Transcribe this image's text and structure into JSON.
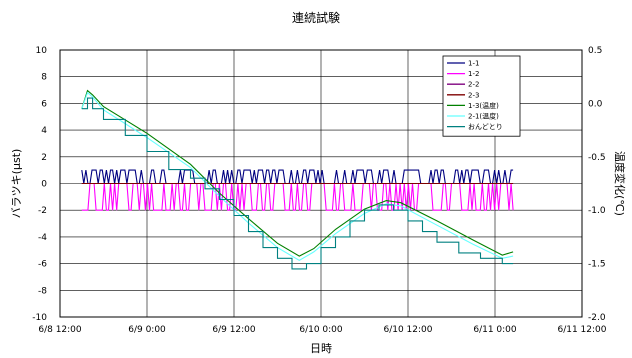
{
  "chart_data": {
    "type": "line",
    "title": "連続試験",
    "xlabel": "日時",
    "ylabel": "バラツキ(μst)",
    "y2label": "温度変化(℃)",
    "x_ticks": [
      "6/8 12:00",
      "6/9 0:00",
      "6/9 12:00",
      "6/10 0:00",
      "6/10 12:00",
      "6/11 0:00",
      "6/11 12:00"
    ],
    "x_range_hours": [
      0,
      72
    ],
    "ylim": [
      -10,
      10
    ],
    "y_ticks": [
      -10,
      -8,
      -6,
      -4,
      -2,
      0,
      2,
      4,
      6,
      8,
      10
    ],
    "y2lim": [
      -2.0,
      0.5
    ],
    "y2_ticks": [
      "0.5",
      "0.0",
      "-0.5",
      "-1.0",
      "-1.5",
      "-2.0"
    ],
    "y2_tick_values": [
      0.5,
      0.0,
      -0.5,
      -1.0,
      -1.5,
      -2.0
    ],
    "grid": true,
    "legend_position": "top-right",
    "series": [
      {
        "name": "1-1",
        "color": "#000080",
        "axis": "left",
        "kind": "noise",
        "levels": [
          0,
          1
        ],
        "seed": 11
      },
      {
        "name": "1-2",
        "color": "#ff00ff",
        "axis": "left",
        "kind": "noise",
        "levels": [
          0,
          -2
        ],
        "seed": 29
      },
      {
        "name": "2-2",
        "color": "#7f007f",
        "axis": "left",
        "kind": "flat",
        "value": 0
      },
      {
        "name": "2-3",
        "color": "#7f0000",
        "axis": "left",
        "kind": "flat",
        "value": 0
      },
      {
        "name": "1-3(温度)",
        "color": "#008000",
        "axis": "right",
        "kind": "curve",
        "points": [
          [
            3.0,
            -0.05
          ],
          [
            3.8,
            0.12
          ],
          [
            4.5,
            0.08
          ],
          [
            6,
            -0.03
          ],
          [
            12,
            -0.28
          ],
          [
            18,
            -0.57
          ],
          [
            22,
            -0.84
          ],
          [
            26,
            -1.08
          ],
          [
            30,
            -1.31
          ],
          [
            33,
            -1.43
          ],
          [
            35,
            -1.36
          ],
          [
            38,
            -1.18
          ],
          [
            42,
            -0.99
          ],
          [
            45,
            -0.91
          ],
          [
            47,
            -0.93
          ],
          [
            52,
            -1.1
          ],
          [
            57,
            -1.28
          ],
          [
            61,
            -1.42
          ],
          [
            62.5,
            -1.39
          ]
        ]
      },
      {
        "name": "2-1(温度)",
        "color": "#66ffff",
        "axis": "right",
        "kind": "curve",
        "points": [
          [
            3.0,
            -0.05
          ],
          [
            3.8,
            0.1
          ],
          [
            4.5,
            0.06
          ],
          [
            6,
            -0.06
          ],
          [
            12,
            -0.32
          ],
          [
            18,
            -0.6
          ],
          [
            22,
            -0.87
          ],
          [
            26,
            -1.12
          ],
          [
            30,
            -1.35
          ],
          [
            33,
            -1.47
          ],
          [
            35,
            -1.39
          ],
          [
            38,
            -1.22
          ],
          [
            42,
            -1.03
          ],
          [
            45,
            -0.94
          ],
          [
            47,
            -0.96
          ],
          [
            52,
            -1.14
          ],
          [
            57,
            -1.32
          ],
          [
            61,
            -1.45
          ],
          [
            62.5,
            -1.43
          ]
        ]
      },
      {
        "name": "おんどとり",
        "color": "#008080",
        "axis": "right",
        "kind": "step",
        "points": [
          [
            3.0,
            -0.05
          ],
          [
            3.8,
            0.05
          ],
          [
            4.5,
            -0.05
          ],
          [
            6,
            -0.15
          ],
          [
            9,
            -0.3
          ],
          [
            12,
            -0.45
          ],
          [
            15,
            -0.62
          ],
          [
            18,
            -0.7
          ],
          [
            20,
            -0.8
          ],
          [
            22,
            -0.9
          ],
          [
            24,
            -1.05
          ],
          [
            26,
            -1.2
          ],
          [
            28,
            -1.35
          ],
          [
            30,
            -1.45
          ],
          [
            32,
            -1.55
          ],
          [
            34,
            -1.5
          ],
          [
            36,
            -1.35
          ],
          [
            38,
            -1.25
          ],
          [
            40,
            -1.1
          ],
          [
            42,
            -1.0
          ],
          [
            44,
            -0.95
          ],
          [
            46,
            -1.0
          ],
          [
            48,
            -1.1
          ],
          [
            50,
            -1.2
          ],
          [
            52,
            -1.3
          ],
          [
            55,
            -1.4
          ],
          [
            58,
            -1.45
          ],
          [
            61,
            -1.5
          ],
          [
            62.5,
            -1.5
          ]
        ]
      }
    ]
  }
}
